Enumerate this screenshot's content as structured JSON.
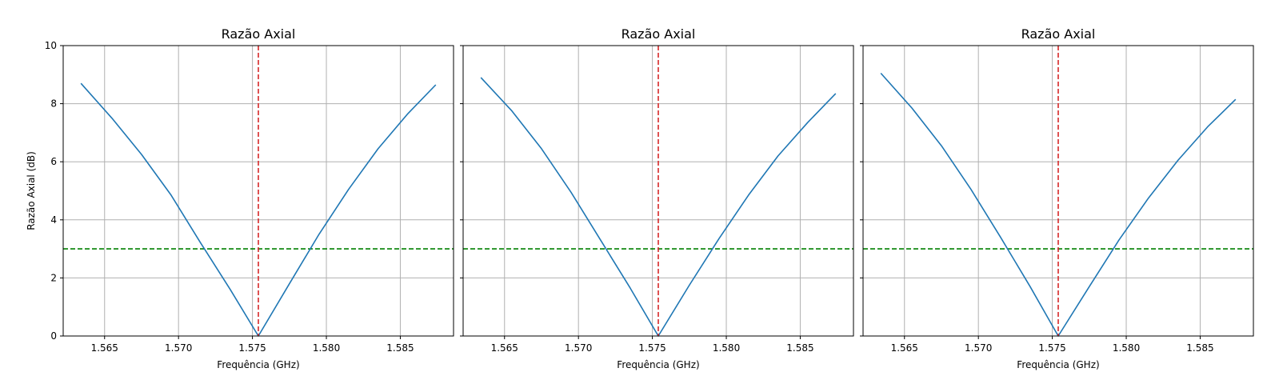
{
  "colors": {
    "curve": "#1f77b4",
    "center_line": "#d62728",
    "threshold_line": "#008000",
    "grid": "#b0b0b0",
    "axes": "#000000"
  },
  "chart_data": [
    {
      "type": "line",
      "title": "Razão Axial",
      "xlabel": "Frequência (GHz)",
      "ylabel": "Razão Axial (dB)",
      "xlim": [
        1.5622,
        1.5886
      ],
      "ylim": [
        0,
        10
      ],
      "xticks": [
        "1.565",
        "1.570",
        "1.575",
        "1.580",
        "1.585"
      ],
      "yticks": [
        "0",
        "2",
        "4",
        "6",
        "8",
        "10"
      ],
      "grid": true,
      "series": [
        {
          "x": [
            1.5634,
            1.5655,
            1.5675,
            1.5695,
            1.5715,
            1.5735,
            1.5754,
            1.5775,
            1.5795,
            1.5815,
            1.5835,
            1.5855,
            1.5874
          ],
          "y": [
            8.7,
            7.5,
            6.25,
            4.85,
            3.2,
            1.6,
            0.0,
            1.8,
            3.5,
            5.05,
            6.45,
            7.65,
            8.65
          ]
        }
      ],
      "vline": 1.5754,
      "hline": 3.0
    },
    {
      "type": "line",
      "title": "Razão Axial",
      "xlabel": "Frequência (GHz)",
      "ylabel": "",
      "xlim": [
        1.5622,
        1.5886
      ],
      "ylim": [
        0,
        10
      ],
      "xticks": [
        "1.565",
        "1.570",
        "1.575",
        "1.580",
        "1.585"
      ],
      "yticks": [],
      "grid": true,
      "series": [
        {
          "x": [
            1.5634,
            1.5655,
            1.5675,
            1.5695,
            1.5715,
            1.5735,
            1.5754,
            1.5775,
            1.5795,
            1.5815,
            1.5835,
            1.5855,
            1.5874
          ],
          "y": [
            8.9,
            7.75,
            6.45,
            4.95,
            3.3,
            1.65,
            0.0,
            1.75,
            3.35,
            4.85,
            6.2,
            7.35,
            8.35
          ]
        }
      ],
      "vline": 1.5754,
      "hline": 3.0
    },
    {
      "type": "line",
      "title": "Razão Axial",
      "xlabel": "Frequência (GHz)",
      "ylabel": "",
      "xlim": [
        1.5622,
        1.5886
      ],
      "ylim": [
        0,
        10
      ],
      "xticks": [
        "1.565",
        "1.570",
        "1.575",
        "1.580",
        "1.585"
      ],
      "yticks": [],
      "grid": true,
      "series": [
        {
          "x": [
            1.5634,
            1.5655,
            1.5675,
            1.5695,
            1.5715,
            1.5735,
            1.5754,
            1.5775,
            1.5795,
            1.5815,
            1.5835,
            1.5855,
            1.5874
          ],
          "y": [
            9.05,
            7.85,
            6.55,
            5.05,
            3.4,
            1.7,
            0.0,
            1.7,
            3.3,
            4.75,
            6.05,
            7.2,
            8.15
          ]
        }
      ],
      "vline": 1.5754,
      "hline": 3.0
    }
  ]
}
